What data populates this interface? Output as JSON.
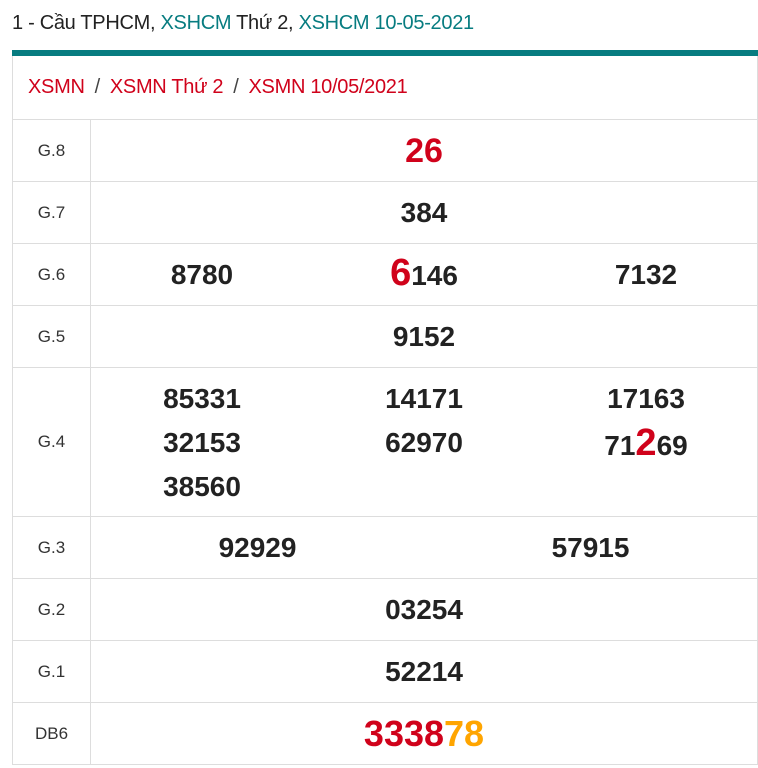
{
  "title": {
    "prefix": "1 - Cầu TPHCM, ",
    "link1": "XSHCM",
    "mid": " Thứ 2, ",
    "link2": "XSHCM 10-05-2021"
  },
  "breadcrumb": [
    "XSMN",
    "XSMN Thứ 2",
    "XSMN 10/05/2021"
  ],
  "breadcrumb_sep": "/",
  "colors": {
    "accent": "#077c80",
    "red": "#d0021b",
    "orange": "#ffa500"
  },
  "results": {
    "g8": {
      "label": "G.8",
      "value": "26"
    },
    "g7": {
      "label": "G.7",
      "value": "384"
    },
    "g6": {
      "label": "G.6",
      "values": [
        "8780",
        "6146",
        "7132"
      ],
      "hl_head": "6",
      "hl_tail": "146"
    },
    "g5": {
      "label": "G.5",
      "value": "9152"
    },
    "g4": {
      "label": "G.4",
      "values": [
        "85331",
        "14171",
        "17163",
        "32153",
        "62970",
        "71269",
        "38560"
      ],
      "hl_a": "71",
      "hl_b": "2",
      "hl_c": "69"
    },
    "g3": {
      "label": "G.3",
      "values": [
        "92929",
        "57915"
      ]
    },
    "g2": {
      "label": "G.2",
      "value": "03254"
    },
    "g1": {
      "label": "G.1",
      "value": "52214"
    },
    "db": {
      "label": "DB6",
      "value_main": "3338",
      "value_tail": "78"
    }
  }
}
